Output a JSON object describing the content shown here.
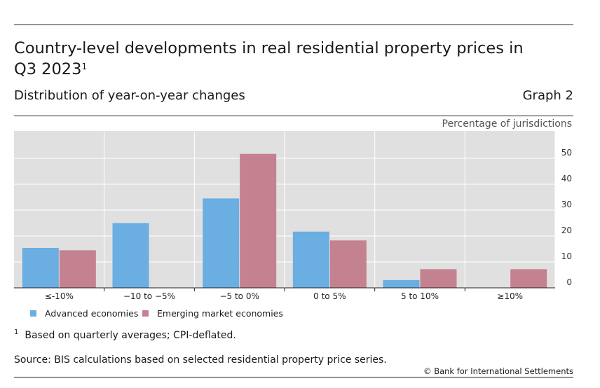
{
  "header": {
    "title": "Country-level developments in real residential property prices in Q3 2023",
    "title_footnote_marker": "1",
    "subtitle": "Distribution of year-on-year changes",
    "graph_number": "Graph 2"
  },
  "chart_data": {
    "type": "bar",
    "title": "Country-level developments in real residential property prices in Q3 2023",
    "subtitle": "Distribution of year-on-year changes",
    "ylabel": "Percentage of jurisdictions",
    "xlabel": "",
    "categories": [
      "≤-10%",
      "−10 to −5%",
      "−5 to 0%",
      "0 to 5%",
      "5 to 10%",
      "≥10%"
    ],
    "series": [
      {
        "name": "Advanced economies",
        "color": "#6aaee2",
        "values": [
          15.4,
          25,
          34.5,
          21.7,
          3,
          0
        ]
      },
      {
        "name": "Emerging market economies",
        "color": "#c48190",
        "values": [
          14.5,
          0,
          51.7,
          18.3,
          7.2,
          7.2
        ]
      }
    ],
    "ylim": [
      0,
      60
    ],
    "yticks": [
      0,
      10,
      20,
      30,
      40,
      50
    ],
    "y_axis_side": "right",
    "grid": true,
    "legend": "bottom-left",
    "background": "#e0e0e0"
  },
  "notes": {
    "footnote_marker": "1",
    "footnote": "Based on quarterly averages; CPI-deflated.",
    "source": "Source: BIS calculations based on selected residential property price series.",
    "copyright": "© Bank for International Settlements"
  }
}
